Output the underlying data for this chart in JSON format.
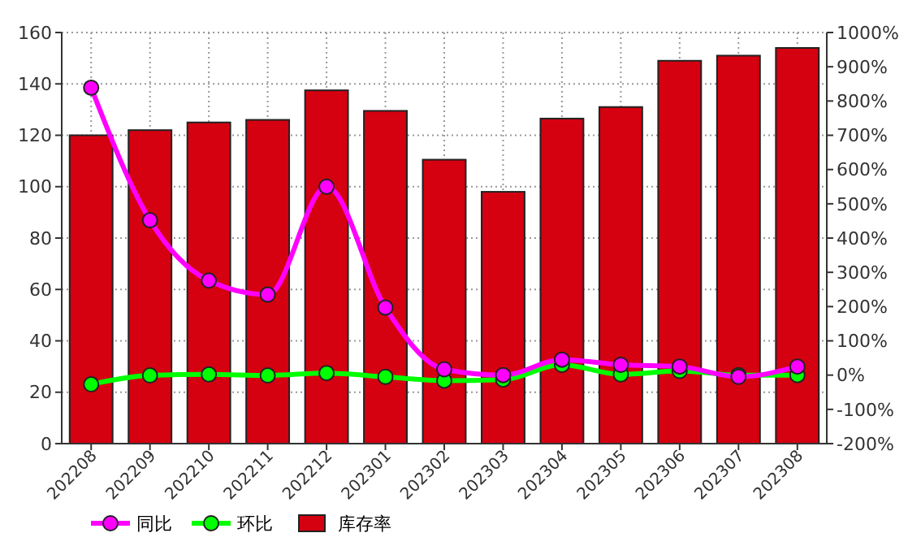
{
  "chart_data": {
    "type": "bar",
    "categories": [
      "202208",
      "202209",
      "202210",
      "202211",
      "202212",
      "202301",
      "202302",
      "202303",
      "202304",
      "202305",
      "202306",
      "202307",
      "202308"
    ],
    "series": [
      {
        "name": "同比",
        "type": "line",
        "axis": "y2",
        "color": "#ff00ff",
        "marker": "circle",
        "values": [
          839,
          452,
          276,
          235,
          550,
          197,
          17,
          0,
          45,
          30,
          25,
          -5,
          25
        ]
      },
      {
        "name": "环比",
        "type": "line",
        "axis": "y2",
        "color": "#00ff00",
        "marker": "circle",
        "values": [
          -27,
          -1,
          2,
          -1,
          6,
          -5,
          -16,
          -13,
          30,
          2,
          12,
          0,
          0
        ]
      },
      {
        "name": "库存率",
        "color": "#d50010",
        "values": [
          120,
          122,
          125,
          126,
          137.5,
          129.5,
          110.5,
          98,
          126.5,
          131,
          149,
          151,
          154
        ]
      }
    ],
    "ylim": [
      0,
      160
    ],
    "yticks": [
      0,
      20,
      40,
      60,
      80,
      100,
      120,
      140,
      160
    ],
    "y2lim": [
      -200,
      1000
    ],
    "y2ticks": [
      {
        "value": -200,
        "label": "-200%"
      },
      {
        "value": -100,
        "label": "-100%"
      },
      {
        "value": 0,
        "label": "0%"
      },
      {
        "value": 100,
        "label": "100%"
      },
      {
        "value": 200,
        "label": "200%"
      },
      {
        "value": 300,
        "label": "300%"
      },
      {
        "value": 400,
        "label": "400%"
      },
      {
        "value": 500,
        "label": "500%"
      },
      {
        "value": 600,
        "label": "600%"
      },
      {
        "value": 700,
        "label": "700%"
      },
      {
        "value": 800,
        "label": "800%"
      },
      {
        "value": 900,
        "label": "900%"
      },
      {
        "value": 1000,
        "label": "1000%"
      }
    ],
    "grid": true,
    "legend": "bottom left"
  }
}
